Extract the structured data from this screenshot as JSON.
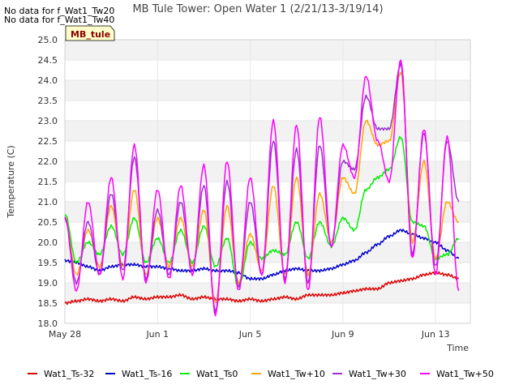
{
  "chart_data": {
    "type": "line",
    "title": "MB Tule Tower: Open Water 1 (2/21/13-3/19/14)",
    "xlabel": "Time",
    "ylabel": "Temperature (C)",
    "ylim": [
      18.0,
      25.0
    ],
    "xlim": [
      0,
      17.5
    ],
    "x_tick_values": [
      0,
      4,
      8,
      12,
      16
    ],
    "x_tick_labels": [
      "May 28",
      "Jun 1",
      "Jun 5",
      "Jun 9",
      "Jun 13"
    ],
    "y_ticks": [
      18.0,
      18.5,
      19.0,
      19.5,
      20.0,
      20.5,
      21.0,
      21.5,
      22.0,
      22.5,
      23.0,
      23.5,
      24.0,
      24.5,
      25.0
    ],
    "x_unit": "days since May 28",
    "grid": true,
    "legend_placement": "bottom",
    "no_data_notes": [
      "No data for f_Wat1_Tw20",
      "No data for f_Wat1_Tw40"
    ],
    "badge": "MB_tule",
    "series": [
      {
        "name": "Wat1_Ts-32",
        "color": "#dd0000",
        "x": [
          0.0,
          0.5,
          1.0,
          1.5,
          2.0,
          2.5,
          3.0,
          3.5,
          4.0,
          4.5,
          5.0,
          5.5,
          6.0,
          6.5,
          7.0,
          7.5,
          8.0,
          8.5,
          9.0,
          9.5,
          10.0,
          10.5,
          11.0,
          11.5,
          12.0,
          12.5,
          13.0,
          13.5,
          14.0,
          14.5,
          15.0,
          15.5,
          16.0,
          16.5,
          17.0
        ],
        "y": [
          18.5,
          18.55,
          18.6,
          18.55,
          18.6,
          18.55,
          18.65,
          18.6,
          18.65,
          18.65,
          18.7,
          18.6,
          18.65,
          18.6,
          18.6,
          18.55,
          18.6,
          18.55,
          18.6,
          18.65,
          18.6,
          18.7,
          18.7,
          18.7,
          18.75,
          18.8,
          18.85,
          18.85,
          19.0,
          19.05,
          19.1,
          19.2,
          19.25,
          19.2,
          19.1
        ]
      },
      {
        "name": "Wat1_Ts-16",
        "color": "#0000cc",
        "x": [
          0.0,
          0.5,
          1.0,
          1.5,
          2.0,
          2.5,
          3.0,
          3.5,
          4.0,
          4.5,
          5.0,
          5.5,
          6.0,
          6.5,
          7.0,
          7.5,
          8.0,
          8.5,
          9.0,
          9.5,
          10.0,
          10.5,
          11.0,
          11.5,
          12.0,
          12.5,
          13.0,
          13.5,
          14.0,
          14.5,
          15.0,
          15.5,
          16.0,
          16.5,
          17.0
        ],
        "y": [
          19.55,
          19.5,
          19.4,
          19.3,
          19.4,
          19.45,
          19.45,
          19.4,
          19.4,
          19.35,
          19.3,
          19.3,
          19.35,
          19.3,
          19.3,
          19.25,
          19.1,
          19.1,
          19.2,
          19.3,
          19.35,
          19.3,
          19.3,
          19.35,
          19.45,
          19.55,
          19.75,
          19.95,
          20.15,
          20.3,
          20.2,
          20.1,
          20.0,
          19.8,
          19.6
        ]
      },
      {
        "name": "Wat1_Ts0",
        "color": "#00ee00",
        "x": [
          0.0,
          0.5,
          1.0,
          1.5,
          2.0,
          2.5,
          3.0,
          3.5,
          4.0,
          4.5,
          5.0,
          5.5,
          6.0,
          6.5,
          7.0,
          7.5,
          8.0,
          8.5,
          9.0,
          9.5,
          10.0,
          10.5,
          11.0,
          11.5,
          12.0,
          12.5,
          13.0,
          13.5,
          14.0,
          14.5,
          15.0,
          15.5,
          16.0,
          16.5,
          17.0
        ],
        "y": [
          20.7,
          19.5,
          20.0,
          19.7,
          20.4,
          19.7,
          20.6,
          19.5,
          20.1,
          19.5,
          20.3,
          19.5,
          20.4,
          19.4,
          20.1,
          18.9,
          20.0,
          19.6,
          19.8,
          19.7,
          20.5,
          19.6,
          20.5,
          19.9,
          20.6,
          20.3,
          21.3,
          21.6,
          21.8,
          22.6,
          20.5,
          20.4,
          19.6,
          19.7,
          20.1
        ]
      },
      {
        "name": "Wat1_Tw+10",
        "color": "#ffa500",
        "x": [
          0.0,
          0.5,
          1.0,
          1.5,
          2.0,
          2.5,
          3.0,
          3.5,
          4.0,
          4.5,
          5.0,
          5.5,
          6.0,
          6.5,
          7.0,
          7.5,
          8.0,
          8.5,
          9.0,
          9.5,
          10.0,
          10.5,
          11.0,
          11.5,
          12.0,
          12.5,
          13.0,
          13.5,
          14.0,
          14.5,
          15.0,
          15.5,
          16.0,
          16.5,
          17.0
        ],
        "y": [
          20.6,
          19.2,
          20.3,
          19.4,
          20.9,
          19.4,
          21.3,
          19.2,
          20.6,
          19.4,
          20.6,
          19.4,
          20.8,
          18.5,
          20.9,
          19.0,
          20.2,
          19.3,
          21.4,
          19.2,
          21.6,
          19.2,
          21.2,
          20.0,
          21.6,
          21.2,
          23.0,
          22.4,
          22.5,
          24.2,
          20.0,
          22.0,
          19.6,
          21.0,
          20.5
        ]
      },
      {
        "name": "Wat1_Tw+30",
        "color": "#9932cc",
        "x": [
          0.0,
          0.5,
          1.0,
          1.5,
          2.0,
          2.5,
          3.0,
          3.5,
          4.0,
          4.5,
          5.0,
          5.5,
          6.0,
          6.5,
          7.0,
          7.5,
          8.0,
          8.5,
          9.0,
          9.5,
          10.0,
          10.5,
          11.0,
          11.5,
          12.0,
          12.5,
          13.0,
          13.5,
          14.0,
          14.5,
          15.0,
          15.5,
          16.0,
          16.5,
          17.0
        ],
        "y": [
          20.6,
          19.0,
          20.5,
          19.2,
          21.2,
          19.3,
          22.1,
          19.1,
          20.8,
          19.2,
          21.0,
          19.3,
          21.4,
          18.3,
          21.5,
          18.9,
          21.0,
          19.2,
          22.5,
          19.1,
          22.3,
          19.0,
          22.4,
          19.9,
          22.0,
          21.8,
          23.6,
          22.8,
          22.8,
          24.4,
          19.7,
          22.7,
          19.4,
          22.5,
          21.0
        ]
      },
      {
        "name": "Wat1_Tw+50",
        "color": "#ff00ff",
        "x": [
          0.0,
          0.5,
          1.0,
          1.5,
          2.0,
          2.5,
          3.0,
          3.5,
          4.0,
          4.5,
          5.0,
          5.5,
          6.0,
          6.5,
          7.0,
          7.5,
          8.0,
          8.5,
          9.0,
          9.5,
          10.0,
          10.5,
          11.0,
          11.5,
          12.0,
          12.5,
          13.0,
          13.5,
          14.0,
          14.5,
          15.0,
          15.5,
          16.0,
          16.5,
          17.0
        ],
        "y": [
          20.6,
          18.8,
          21.0,
          19.2,
          21.6,
          19.1,
          22.4,
          19.0,
          21.3,
          19.1,
          21.4,
          19.2,
          21.9,
          18.2,
          22.0,
          18.8,
          21.6,
          19.2,
          23.0,
          19.0,
          22.9,
          18.8,
          23.1,
          19.9,
          22.4,
          21.6,
          24.1,
          22.5,
          21.5,
          24.5,
          19.6,
          22.8,
          19.2,
          22.6,
          18.8
        ]
      }
    ]
  }
}
